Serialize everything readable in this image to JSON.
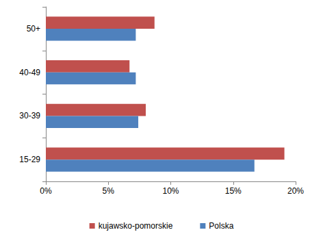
{
  "chart_data": {
    "type": "bar",
    "orientation": "horizontal",
    "categories": [
      "15-29",
      "30-39",
      "40-49",
      "50+"
    ],
    "series": [
      {
        "name": "kujawsko-pomorskie",
        "color": "#c0504d",
        "values": [
          19.1,
          8.0,
          6.7,
          8.7
        ]
      },
      {
        "name": "Polska",
        "color": "#4f81bd",
        "values": [
          16.7,
          7.4,
          7.2,
          7.2
        ]
      }
    ],
    "xlim": [
      0,
      20
    ],
    "xticks": [
      {
        "value": 0,
        "label": "0%"
      },
      {
        "value": 5,
        "label": "5%"
      },
      {
        "value": 10,
        "label": "10%"
      },
      {
        "value": 15,
        "label": "15%"
      },
      {
        "value": 20,
        "label": "20%"
      }
    ],
    "grid": false,
    "legend": "bottom"
  }
}
